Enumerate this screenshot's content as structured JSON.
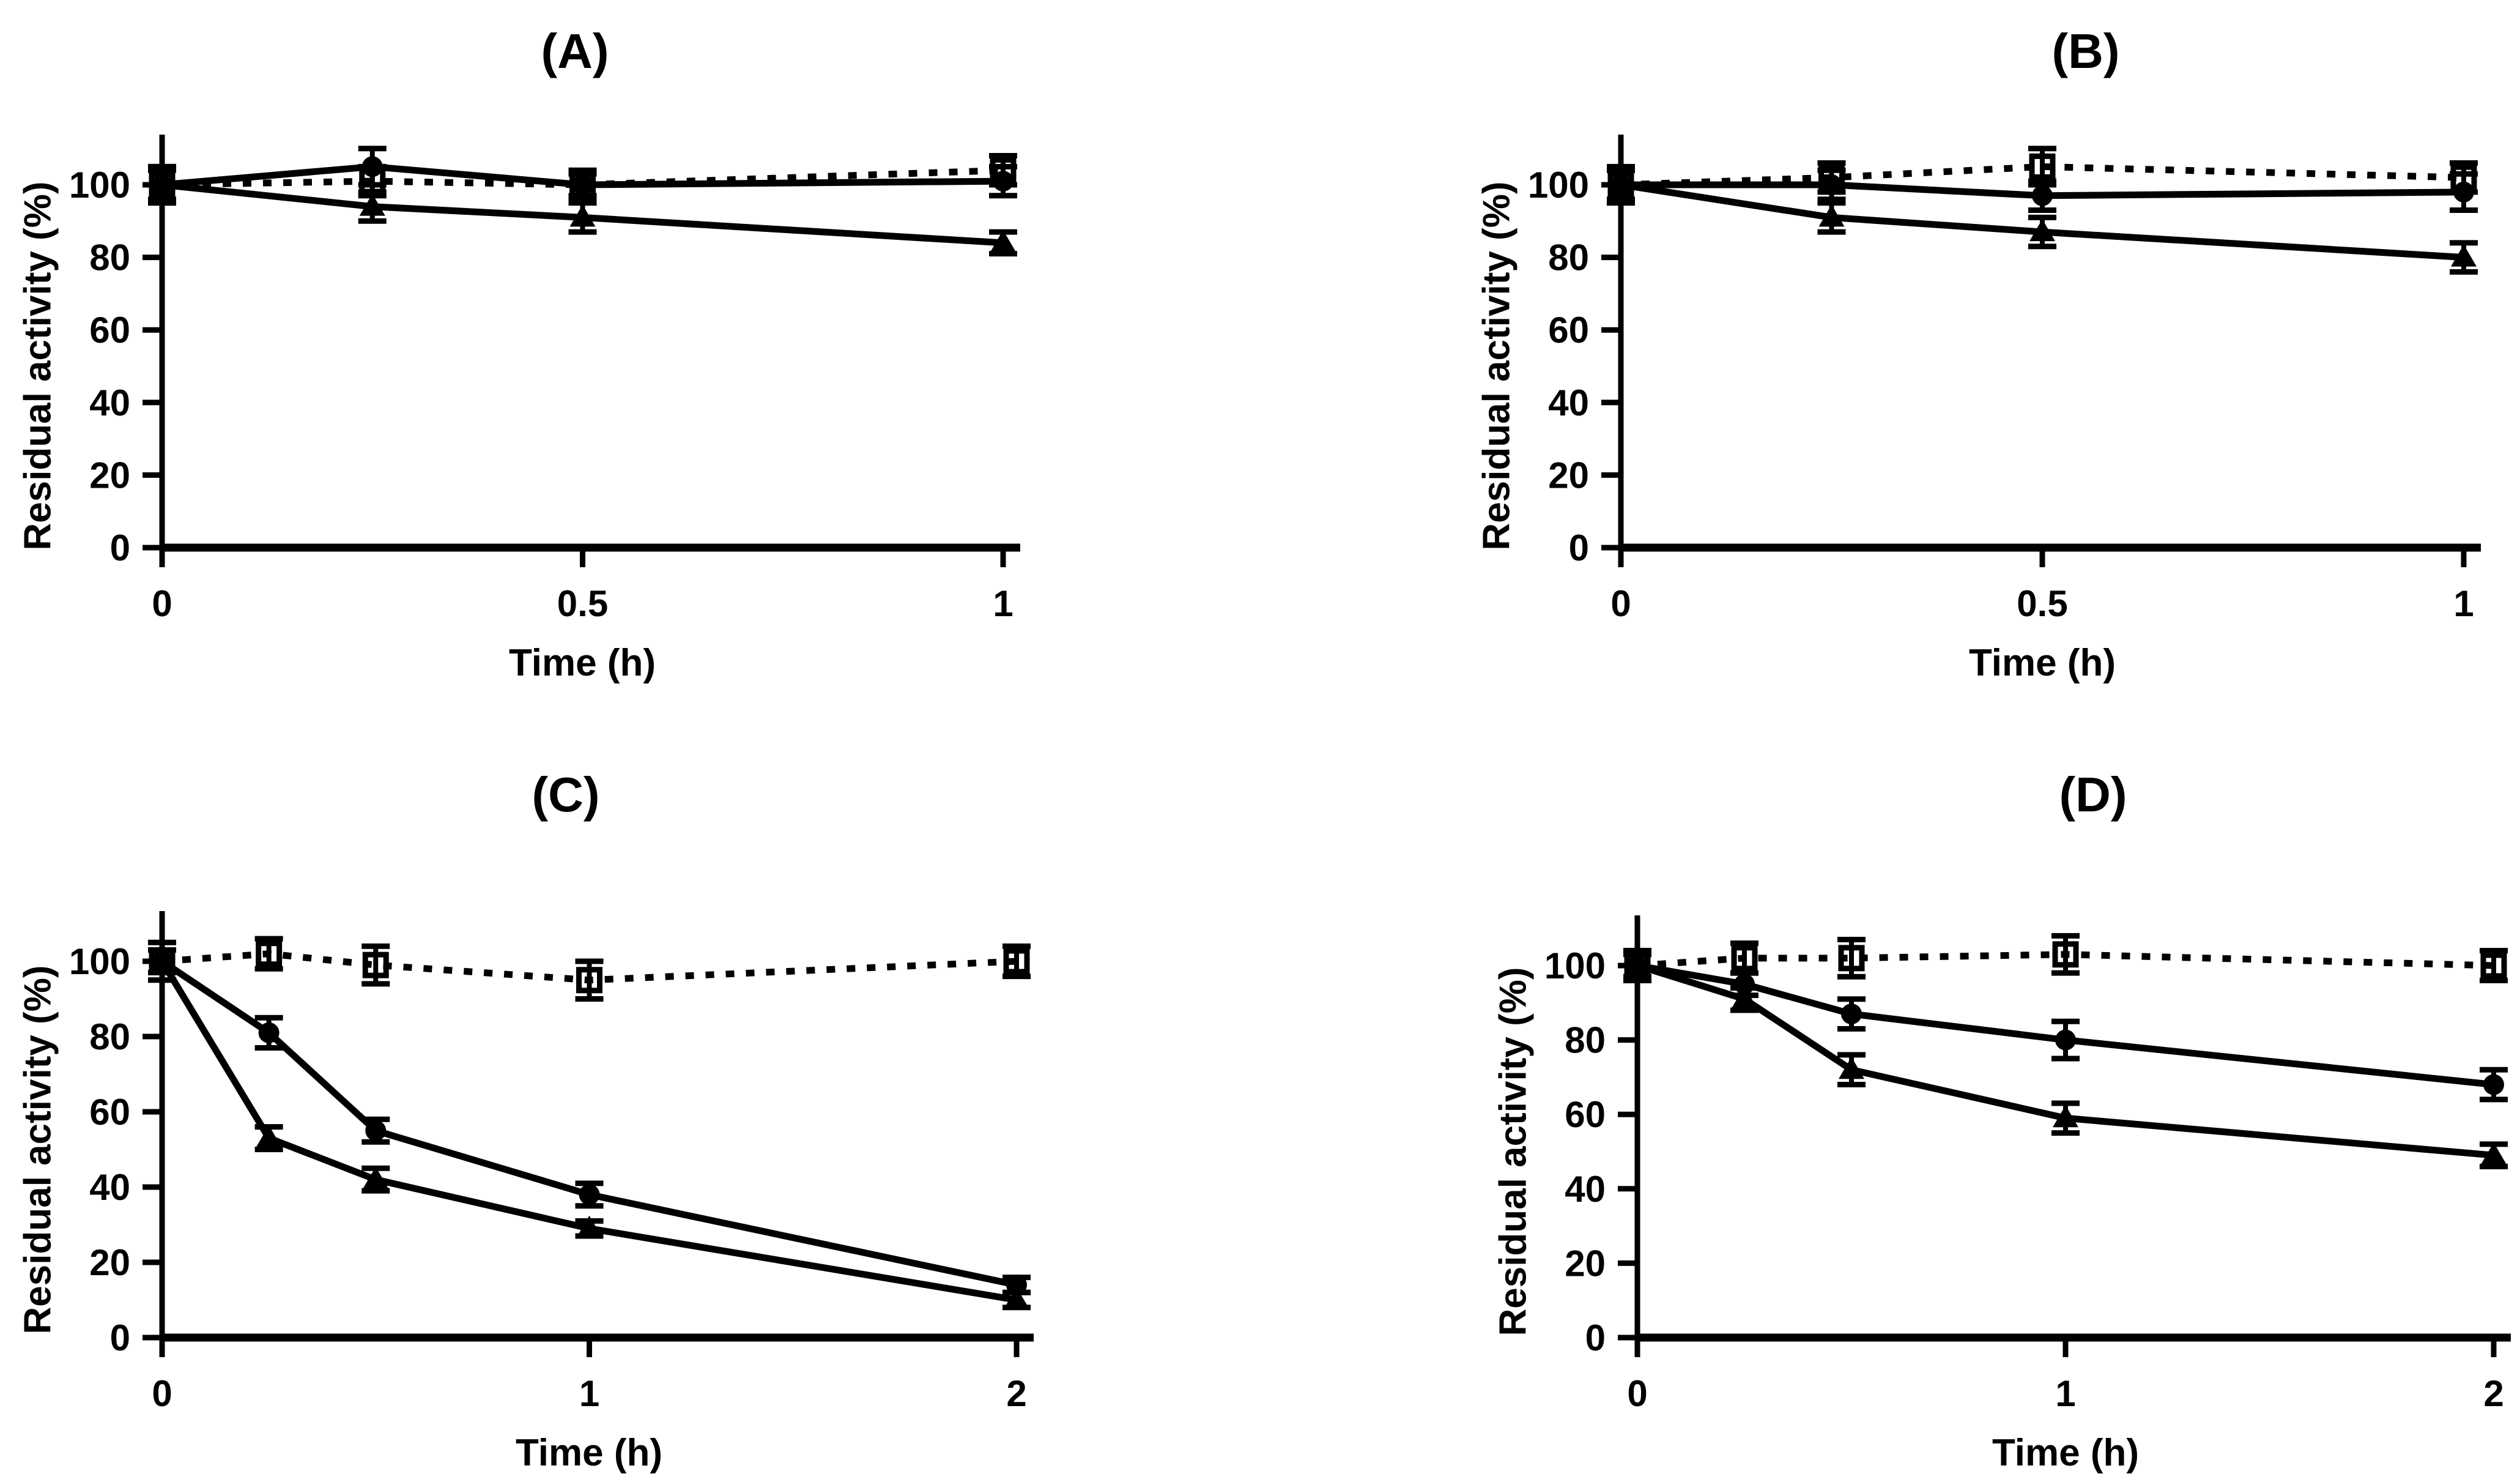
{
  "figure": {
    "background": "#ffffff",
    "ink_color": "#000000",
    "description_names": [
      "panel-A",
      "panel-B",
      "panel-C",
      "panel-D"
    ]
  },
  "chart_data": [
    {
      "id": "A",
      "type": "line",
      "title": "(A)",
      "xlabel": "Time (h)",
      "ylabel": "Residual activity (%)",
      "xlim": [
        0,
        1
      ],
      "ylim": [
        0,
        115
      ],
      "xticks": [
        0,
        0.5,
        1
      ],
      "xtick_labels": [
        "0",
        "0.5",
        "1"
      ],
      "yticks": [
        0,
        20,
        40,
        60,
        80,
        100
      ],
      "ytick_labels": [
        "0",
        "20",
        "40",
        "60",
        "80",
        "100"
      ],
      "grid": false,
      "legend": "none",
      "x": [
        0,
        0.25,
        0.5,
        1
      ],
      "series": [
        {
          "name": "open-square-dotted",
          "marker": "open-square",
          "line": "dotted",
          "values": [
            100,
            101,
            100,
            104
          ],
          "errors": [
            5,
            4,
            3,
            4
          ]
        },
        {
          "name": "filled-circle-solid",
          "marker": "filled-circle",
          "line": "solid",
          "values": [
            100,
            105,
            100,
            101
          ],
          "errors": [
            4,
            5,
            4,
            4
          ]
        },
        {
          "name": "filled-triangle-solid",
          "marker": "filled-triangle",
          "line": "solid",
          "values": [
            100,
            94,
            91,
            84
          ],
          "errors": [
            5,
            4,
            4,
            3
          ]
        }
      ]
    },
    {
      "id": "B",
      "type": "line",
      "title": "(B)",
      "xlabel": "Time (h)",
      "ylabel": "Residual activity (%)",
      "xlim": [
        0,
        1
      ],
      "ylim": [
        0,
        115
      ],
      "xticks": [
        0,
        0.5,
        1
      ],
      "xtick_labels": [
        "0",
        "0.5",
        "1"
      ],
      "yticks": [
        0,
        20,
        40,
        60,
        80,
        100
      ],
      "ytick_labels": [
        "0",
        "20",
        "40",
        "60",
        "80",
        "100"
      ],
      "grid": false,
      "legend": "none",
      "x": [
        0,
        0.25,
        0.5,
        1
      ],
      "series": [
        {
          "name": "open-square-dotted",
          "marker": "open-square",
          "line": "dotted",
          "values": [
            100,
            102,
            105,
            102
          ],
          "errors": [
            5,
            4,
            5,
            4
          ]
        },
        {
          "name": "filled-circle-solid",
          "marker": "filled-circle",
          "line": "solid",
          "values": [
            100,
            100,
            97,
            98
          ],
          "errors": [
            4,
            4,
            4,
            5
          ]
        },
        {
          "name": "filled-triangle-solid",
          "marker": "filled-triangle",
          "line": "solid",
          "values": [
            100,
            91,
            87,
            80
          ],
          "errors": [
            4,
            4,
            4,
            4
          ]
        }
      ]
    },
    {
      "id": "C",
      "type": "line",
      "title": "(C)",
      "xlabel": "Time (h)",
      "ylabel": "Residual activity (%)",
      "xlim": [
        0,
        2
      ],
      "ylim": [
        0,
        115
      ],
      "xticks": [
        0,
        1,
        2
      ],
      "xtick_labels": [
        "0",
        "1",
        "2"
      ],
      "yticks": [
        0,
        20,
        40,
        60,
        80,
        100
      ],
      "ytick_labels": [
        "0",
        "20",
        "40",
        "60",
        "80",
        "100"
      ],
      "grid": false,
      "legend": "none",
      "x": [
        0,
        0.25,
        0.5,
        1,
        2
      ],
      "series": [
        {
          "name": "open-square-dotted",
          "marker": "open-square",
          "line": "dotted",
          "values": [
            100,
            102,
            99,
            95,
            100
          ],
          "errors": [
            5,
            4,
            5,
            5,
            4
          ]
        },
        {
          "name": "filled-circle-solid",
          "marker": "filled-circle",
          "line": "solid",
          "values": [
            100,
            81,
            55,
            38,
            14
          ],
          "errors": [
            3,
            4,
            3,
            3,
            2
          ]
        },
        {
          "name": "filled-triangle-solid",
          "marker": "filled-triangle",
          "line": "solid",
          "values": [
            100,
            53,
            42,
            29,
            10
          ],
          "errors": [
            3,
            3,
            3,
            2,
            2
          ]
        }
      ]
    },
    {
      "id": "D",
      "type": "line",
      "title": "(D)",
      "xlabel": "Time (h)",
      "ylabel": "Residual activity (%)",
      "xlim": [
        0,
        2
      ],
      "ylim": [
        0,
        115
      ],
      "xticks": [
        0,
        1,
        2
      ],
      "xtick_labels": [
        "0",
        "1",
        "2"
      ],
      "yticks": [
        0,
        20,
        40,
        60,
        80,
        100
      ],
      "ytick_labels": [
        "0",
        "20",
        "40",
        "60",
        "80",
        "100"
      ],
      "grid": false,
      "legend": "none",
      "x": [
        0,
        0.25,
        0.5,
        1,
        2
      ],
      "series": [
        {
          "name": "open-square-dotted",
          "marker": "open-square",
          "line": "dotted",
          "values": [
            100,
            102,
            102,
            103,
            100
          ],
          "errors": [
            4,
            4,
            5,
            5,
            4
          ]
        },
        {
          "name": "filled-circle-solid",
          "marker": "filled-circle",
          "line": "solid",
          "values": [
            100,
            95,
            87,
            80,
            68
          ],
          "errors": [
            3,
            3,
            4,
            5,
            4
          ]
        },
        {
          "name": "filled-triangle-solid",
          "marker": "filled-triangle",
          "line": "solid",
          "values": [
            100,
            91,
            72,
            59,
            49
          ],
          "errors": [
            4,
            3,
            4,
            4,
            3
          ]
        }
      ]
    }
  ]
}
